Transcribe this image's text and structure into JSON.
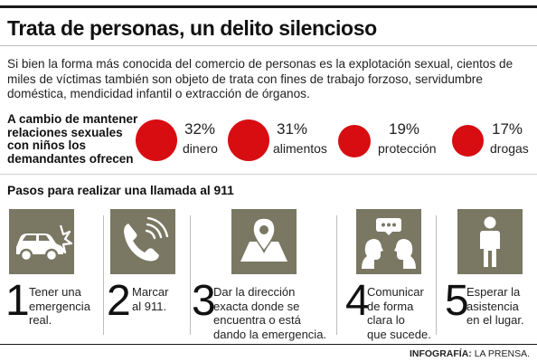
{
  "title": "Trata de personas, un delito silencioso",
  "intro_lines": [
    "Si bien la forma más conocida del comercio de personas es la explotación sexual, cientos de",
    "miles de víctimas también son objeto de trata con fines de trabajo forzoso, servidumbre",
    "doméstica, mendicidad infantil o extracción de órganos."
  ],
  "stats": {
    "heading_lines": [
      "A cambio de mantener",
      "relaciones sexuales",
      "con niños los",
      "demandantes ofrecen"
    ],
    "items": [
      {
        "percent": "32%",
        "label": "dinero",
        "value": 32
      },
      {
        "percent": "31%",
        "label": "alimentos",
        "value": 31
      },
      {
        "percent": "19%",
        "label": "protección",
        "value": 19
      },
      {
        "percent": "17%",
        "label": "drogas",
        "value": 17
      }
    ],
    "dot_color": "#d70d12"
  },
  "steps": {
    "title": "Pasos para realizar una llamada al 911",
    "icon_bg": "#7a7763",
    "items": [
      {
        "number": "1",
        "icon": "car-crash-icon",
        "lines": [
          "Tener una",
          "emergencia",
          "real."
        ]
      },
      {
        "number": "2",
        "icon": "phone-icon",
        "lines": [
          "Marcar",
          "al 911."
        ]
      },
      {
        "number": "3",
        "icon": "map-pin-icon",
        "lines": [
          "Dar la dirección",
          "exacta donde se",
          "encuentra o está",
          "dando la emergencia."
        ]
      },
      {
        "number": "4",
        "icon": "conversation-icon",
        "lines": [
          "Comunicar",
          "de forma",
          "clara lo",
          "que sucede."
        ]
      },
      {
        "number": "5",
        "icon": "person-icon",
        "lines": [
          "Esperar la",
          "asistencia",
          "en el lugar."
        ]
      }
    ]
  },
  "credit": {
    "label": "INFOGRAFÍA:",
    "source": "LA PRENSA."
  }
}
